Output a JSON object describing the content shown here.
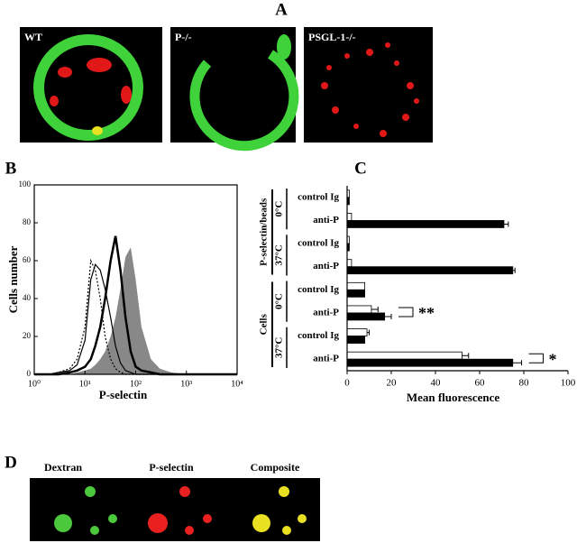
{
  "panel_labels": [
    "A",
    "B",
    "C",
    "D"
  ],
  "panel_a": {
    "images": [
      {
        "label": "WT"
      },
      {
        "label": "P-/-"
      },
      {
        "label": "PSGL-1-/-"
      }
    ]
  },
  "panel_d": {
    "labels": [
      "Dextran",
      "P-selectin",
      "Composite"
    ]
  },
  "chart_data": [
    {
      "type": "line",
      "xlabel": "P-selectin",
      "ylabel": "Cells number",
      "xscale": "log",
      "xlim": [
        1,
        10000
      ],
      "xticks": [
        {
          "value": 1,
          "label": "10⁰"
        },
        {
          "value": 10,
          "label": "10¹"
        },
        {
          "value": 100,
          "label": "10²"
        },
        {
          "value": 1000,
          "label": "10³"
        },
        {
          "value": 10000,
          "label": "10⁴"
        }
      ],
      "ylim": [
        0,
        100
      ],
      "yticks": [
        0,
        20,
        40,
        60,
        80,
        100
      ],
      "x": [
        1,
        2,
        3,
        5,
        7,
        10,
        13,
        16,
        20,
        25,
        32,
        40,
        50,
        63,
        80,
        100,
        130,
        200,
        300,
        500,
        1000,
        10000
      ],
      "series": [
        {
          "color": "#888888",
          "fill": true,
          "values": [
            0,
            0,
            0,
            0,
            1,
            2,
            3,
            5,
            8,
            12,
            20,
            30,
            45,
            62,
            67,
            50,
            25,
            8,
            3,
            1,
            0,
            0
          ]
        },
        {
          "color": "#000000",
          "dash": true,
          "values": [
            0,
            0,
            1,
            3,
            8,
            25,
            60,
            55,
            40,
            20,
            8,
            3,
            1,
            0,
            0,
            0,
            0,
            0,
            0,
            0,
            0,
            0
          ]
        },
        {
          "color": "#000000",
          "values": [
            0,
            0,
            1,
            2,
            5,
            18,
            50,
            58,
            55,
            45,
            30,
            15,
            6,
            2,
            1,
            0,
            0,
            0,
            0,
            0,
            0,
            0
          ]
        },
        {
          "color": "#000000",
          "width": 2.5,
          "values": [
            0,
            0,
            0,
            1,
            2,
            4,
            8,
            15,
            25,
            40,
            60,
            73,
            55,
            30,
            12,
            4,
            2,
            1,
            0,
            0,
            0,
            0
          ]
        }
      ]
    },
    {
      "type": "barh",
      "xlabel": "Mean fluorescence",
      "xlim": [
        0,
        100
      ],
      "xticks": [
        0,
        20,
        40,
        60,
        80,
        100
      ],
      "categories": [
        "control Ig",
        "anti-P",
        "control Ig",
        "anti-P",
        "control Ig",
        "anti-P",
        "control Ig",
        "anti-P"
      ],
      "groups": [
        {
          "label": "P-selectin/beads",
          "subgroups": [
            "0°C",
            "37°C"
          ]
        },
        {
          "label": "Cells",
          "subgroups": [
            "0°C",
            "37°C"
          ]
        }
      ],
      "series": [
        {
          "color": "#ffffff",
          "values": [
            1,
            2,
            1,
            2,
            8,
            11,
            9,
            52
          ],
          "errors": [
            0,
            0,
            0,
            0,
            0,
            3,
            1,
            3
          ]
        },
        {
          "color": "#000000",
          "values": [
            1,
            71,
            1,
            75,
            8,
            17,
            8,
            75
          ],
          "errors": [
            0,
            2,
            0,
            1,
            0,
            3,
            0,
            4
          ]
        }
      ],
      "annotations": [
        "**",
        "*"
      ]
    }
  ]
}
